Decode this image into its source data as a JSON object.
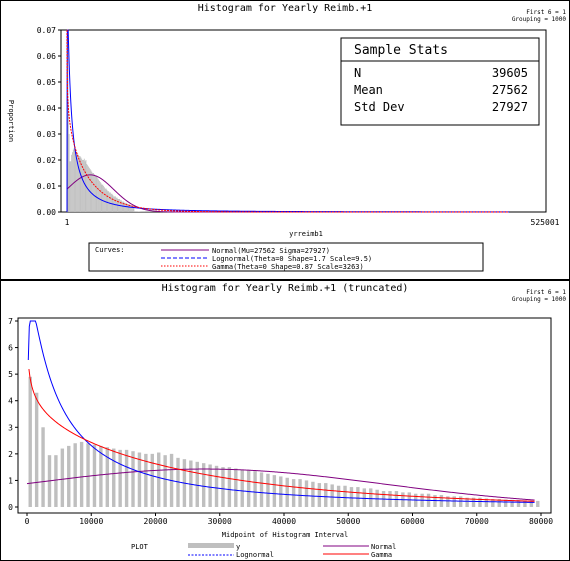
{
  "chart_data": [
    {
      "type": "bar",
      "title": "Histogram for Yearly Reimb.+1",
      "corner_note_1": "First 6 = 1",
      "corner_note_2": "Grouping = 1000",
      "xlabel": "yrreimb1",
      "ylabel": "Proportion",
      "x_ticks": [
        "1",
        "525001"
      ],
      "xlim": [
        1,
        525001
      ],
      "y_ticks": [
        "0.00",
        "0.01",
        "0.02",
        "0.03",
        "0.04",
        "0.05",
        "0.06",
        "0.07"
      ],
      "ylim": [
        0,
        0.07
      ],
      "stats_box": {
        "title": "Sample Stats",
        "rows": [
          {
            "label": "N",
            "value": "39605"
          },
          {
            "label": "Mean",
            "value": "27562"
          },
          {
            "label": "Std Dev",
            "value": "27927"
          }
        ]
      },
      "legend": {
        "title": "Curves:",
        "entries": [
          {
            "label": "Normal(Mu=27562 Sigma=27927)",
            "color": "#800080",
            "dash": "solid"
          },
          {
            "label": "Lognormal(Theta=0 Shape=1.7 Scale=9.5)",
            "color": "#0000ff",
            "dash": "dashed"
          },
          {
            "label": "Gamma(Theta=0 Shape=0.87 Scale=3263)",
            "color": "#ff0000",
            "dash": "dotted"
          }
        ]
      },
      "series": [
        {
          "name": "Normal",
          "color": "#800080"
        },
        {
          "name": "Lognormal",
          "color": "#0000ff"
        },
        {
          "name": "Gamma",
          "color": "#ff0000"
        }
      ]
    },
    {
      "type": "bar",
      "title": "Histogram for Yearly Reimb.+1 (truncated)",
      "corner_note_1": "First 6 = 1",
      "corner_note_2": "Grouping = 1000",
      "xlabel": "Midpoint of Histogram Interval",
      "ylabel": "",
      "x_ticks": [
        "0",
        "10000",
        "20000",
        "30000",
        "40000",
        "50000",
        "60000",
        "70000",
        "80000"
      ],
      "xlim": [
        0,
        80000
      ],
      "y_ticks": [
        "0",
        "1",
        "2",
        "3",
        "4",
        "5",
        "6",
        "7"
      ],
      "ylim": [
        0,
        7
      ],
      "bar_midpoints": [
        500,
        1500,
        2500,
        3500,
        4500,
        5500,
        6500,
        7500,
        8500,
        9500,
        10500,
        11500,
        12500,
        13500,
        14500,
        15500,
        16500,
        17500,
        18500,
        19500,
        20500,
        21500,
        22500,
        23500,
        24500,
        25500,
        26500,
        27500,
        28500,
        29500,
        30500,
        31500,
        32500,
        33500,
        34500,
        35500,
        36500,
        37500,
        38500,
        39500,
        40500,
        41500,
        42500,
        43500,
        44500,
        45500,
        46500,
        47500,
        48500,
        49500,
        50500,
        51500,
        52500,
        53500,
        54500,
        55500,
        56500,
        57500,
        58500,
        59500,
        60500,
        61500,
        62500,
        63500,
        64500,
        65500,
        66500,
        67500,
        68500,
        69500,
        70500,
        71500,
        72500,
        73500,
        74500,
        75500,
        76500,
        77500,
        78500,
        79500
      ],
      "bar_values": [
        4.9,
        4.3,
        3.0,
        1.95,
        1.95,
        2.2,
        2.3,
        2.4,
        2.45,
        2.4,
        2.35,
        2.3,
        2.25,
        2.2,
        2.15,
        2.15,
        2.1,
        2.05,
        2.0,
        2.0,
        2.05,
        1.95,
        2.0,
        1.85,
        1.8,
        1.75,
        1.7,
        1.65,
        1.6,
        1.55,
        1.5,
        1.5,
        1.45,
        1.4,
        1.4,
        1.35,
        1.3,
        1.25,
        1.2,
        1.15,
        1.1,
        1.05,
        1.05,
        1.0,
        0.95,
        0.9,
        0.9,
        0.85,
        0.8,
        0.8,
        0.75,
        0.75,
        0.7,
        0.7,
        0.65,
        0.6,
        0.6,
        0.6,
        0.55,
        0.55,
        0.5,
        0.5,
        0.5,
        0.45,
        0.45,
        0.4,
        0.4,
        0.4,
        0.35,
        0.35,
        0.35,
        0.32,
        0.3,
        0.3,
        0.28,
        0.27,
        0.26,
        0.25,
        0.24,
        0.23
      ],
      "series": [
        {
          "name": "Normal",
          "color": "#800080",
          "dash": "solid"
        },
        {
          "name": "Lognormal",
          "color": "#0000ff",
          "dash": "dashed"
        },
        {
          "name": "Gamma",
          "color": "#ff0000",
          "dash": "solid"
        }
      ],
      "legend": {
        "title": "PLOT",
        "entries": [
          {
            "label": "y",
            "color": "#bfbfbf",
            "kind": "bar"
          },
          {
            "label": "Normal",
            "color": "#800080",
            "kind": "line"
          },
          {
            "label": "Lognormal",
            "color": "#0000ff",
            "kind": "dashed"
          },
          {
            "label": "Gamma",
            "color": "#ff0000",
            "kind": "line"
          }
        ]
      }
    }
  ]
}
